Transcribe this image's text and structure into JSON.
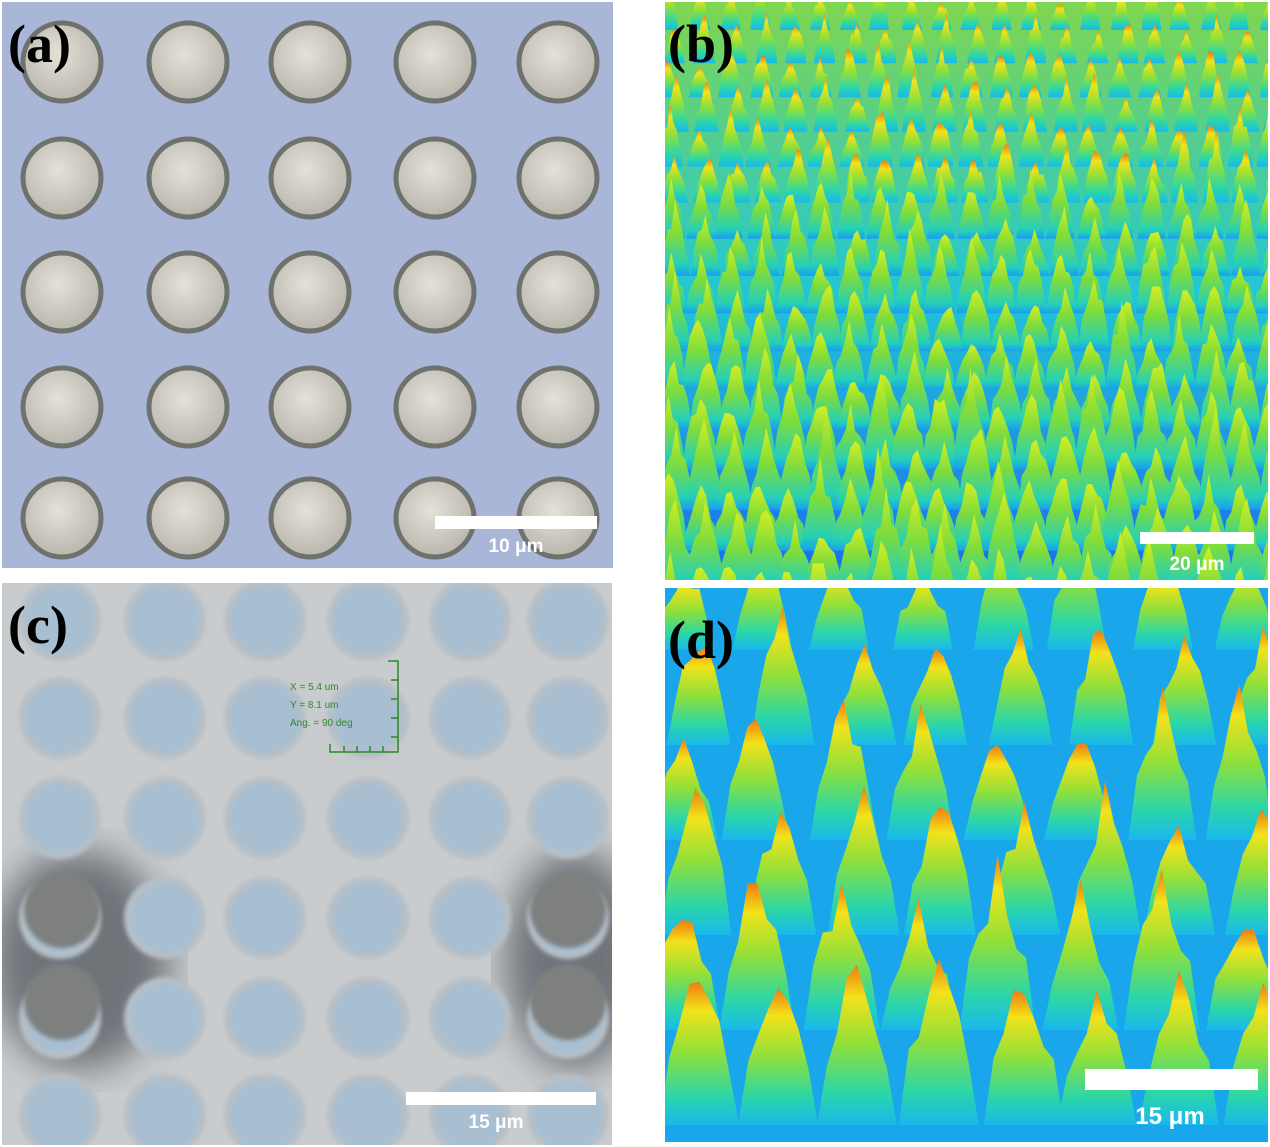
{
  "panels": [
    {
      "label": "(a)",
      "scale_bar": "10 μm"
    },
    {
      "label": "(b)",
      "scale_bar": "20 μm"
    },
    {
      "label": "(c)",
      "scale_bar": "15 μm",
      "annotation": [
        "X = 5.4 um",
        "Y = 8.1 um",
        "Ang. = 90 deg"
      ]
    },
    {
      "label": "(d)",
      "scale_bar": "15 μm"
    }
  ]
}
